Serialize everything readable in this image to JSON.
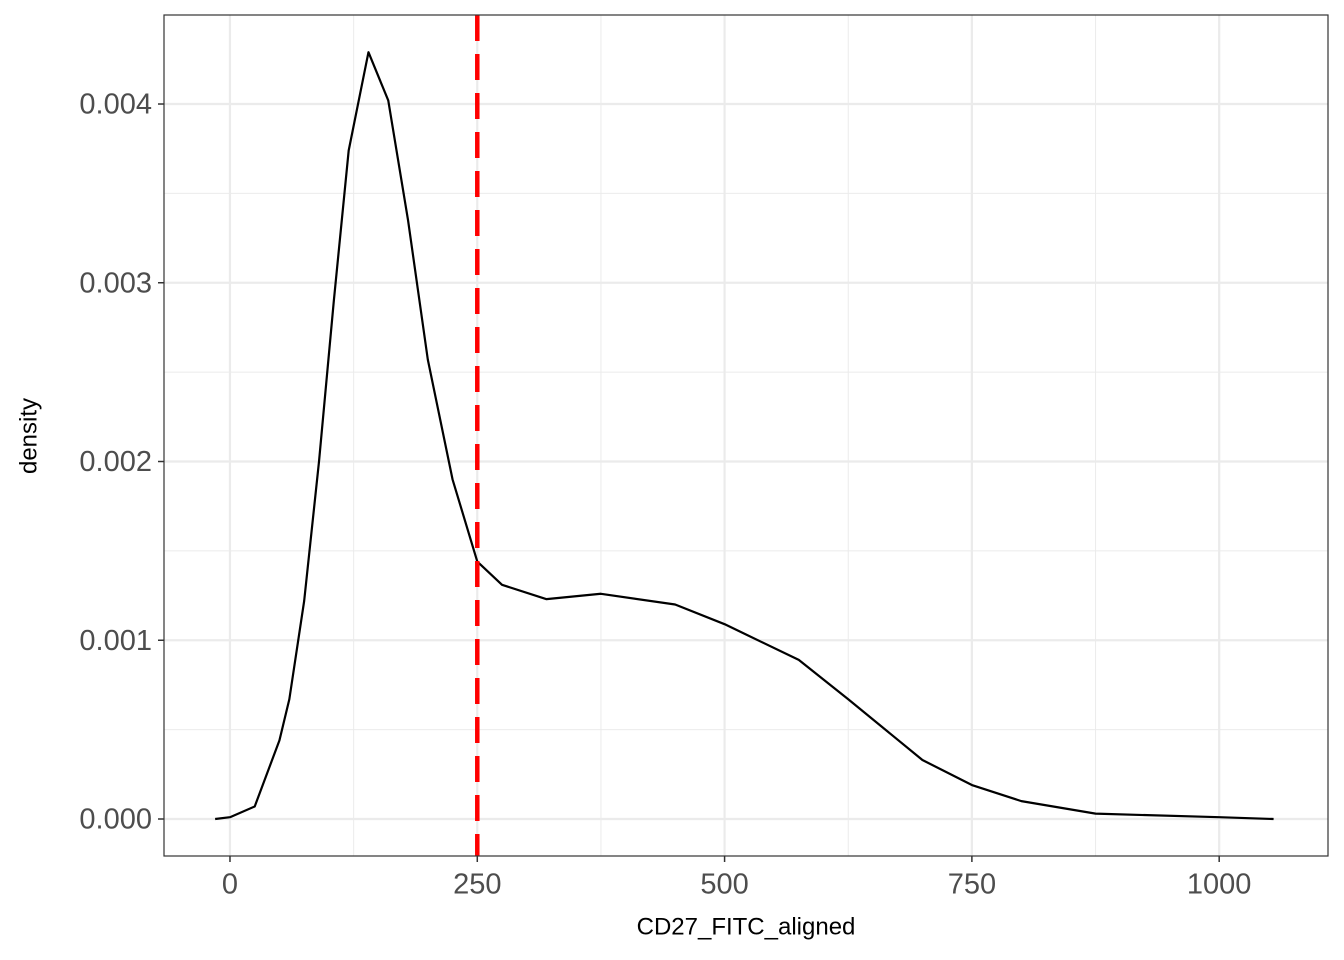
{
  "chart_data": {
    "type": "line",
    "xlabel": "CD27_FITC_aligned",
    "ylabel": "density",
    "x": [
      -15,
      0,
      25,
      50,
      60,
      75,
      90,
      105,
      120,
      140,
      160,
      180,
      200,
      225,
      250,
      275,
      320,
      375,
      450,
      500,
      575,
      625,
      700,
      750,
      800,
      875,
      1000,
      1055
    ],
    "series": [
      {
        "name": "density",
        "color": "#000000",
        "values": [
          0.0,
          1e-05,
          7e-05,
          0.00044,
          0.00067,
          0.00122,
          0.002,
          0.0029,
          0.00374,
          0.00429,
          0.00402,
          0.00335,
          0.00257,
          0.0019,
          0.00144,
          0.00131,
          0.00123,
          0.00126,
          0.0012,
          0.00109,
          0.00089,
          0.00067,
          0.00033,
          0.00019,
          0.0001,
          3e-05,
          1e-05,
          0.0
        ]
      }
    ],
    "vline": {
      "x": 250,
      "color": "#ff0000",
      "dashed": true
    },
    "xlim": [
      -66.7,
      1110
    ],
    "ylim": [
      -0.000207,
      0.004498
    ],
    "xticks": [
      0,
      250,
      500,
      750,
      1000
    ],
    "yticks": [
      {
        "value": 0,
        "label": "0.000"
      },
      {
        "value": 0.001,
        "label": "0.001"
      },
      {
        "value": 0.002,
        "label": "0.002"
      },
      {
        "value": 0.003,
        "label": "0.003"
      },
      {
        "value": 0.004,
        "label": "0.004"
      }
    ],
    "grid": true,
    "minor_grid": true
  }
}
